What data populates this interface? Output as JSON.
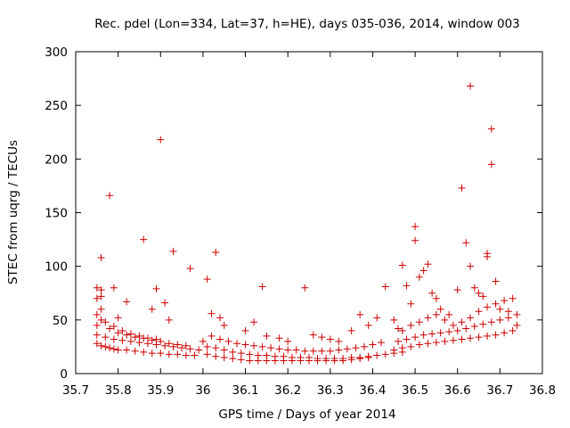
{
  "chart_data": {
    "type": "scatter",
    "title": "Rec. pdel (Lon=334, Lat=37, h=HE), days 035-036, 2014, window 003",
    "xlabel": "GPS time / Days of year 2014",
    "ylabel": "STEC from uqrg / TECUs",
    "xlim": [
      35.7,
      36.8
    ],
    "ylim": [
      0,
      300
    ],
    "xticks": [
      "35.7",
      "35.8",
      "35.9",
      "36",
      "36.1",
      "36.2",
      "36.3",
      "36.4",
      "36.5",
      "36.6",
      "36.7",
      "36.8"
    ],
    "yticks": [
      "0",
      "50",
      "100",
      "150",
      "200",
      "250",
      "300"
    ],
    "grid": false,
    "marker": "+",
    "marker_color": "#cc0000",
    "series": [
      {
        "name": "STEC",
        "points": [
          [
            35.75,
            28
          ],
          [
            35.76,
            26
          ],
          [
            35.77,
            25
          ],
          [
            35.78,
            24
          ],
          [
            35.79,
            23
          ],
          [
            35.8,
            22
          ],
          [
            35.82,
            22
          ],
          [
            35.84,
            21
          ],
          [
            35.86,
            20
          ],
          [
            35.88,
            19
          ],
          [
            35.9,
            19
          ],
          [
            35.92,
            18
          ],
          [
            35.94,
            18
          ],
          [
            35.96,
            17
          ],
          [
            35.98,
            17
          ],
          [
            35.75,
            36
          ],
          [
            35.77,
            34
          ],
          [
            35.79,
            32
          ],
          [
            35.81,
            31
          ],
          [
            35.83,
            30
          ],
          [
            35.85,
            29
          ],
          [
            35.87,
            28
          ],
          [
            35.89,
            27
          ],
          [
            35.91,
            26
          ],
          [
            35.93,
            25
          ],
          [
            35.95,
            24
          ],
          [
            35.97,
            23
          ],
          [
            35.99,
            22
          ],
          [
            35.75,
            45
          ],
          [
            35.76,
            50
          ],
          [
            35.78,
            42
          ],
          [
            35.8,
            38
          ],
          [
            35.82,
            36
          ],
          [
            35.84,
            34
          ],
          [
            35.86,
            33
          ],
          [
            35.88,
            31
          ],
          [
            35.9,
            30
          ],
          [
            35.92,
            28
          ],
          [
            35.94,
            27
          ],
          [
            35.96,
            26
          ],
          [
            35.75,
            55
          ],
          [
            35.76,
            60
          ],
          [
            35.77,
            48
          ],
          [
            35.79,
            44
          ],
          [
            35.81,
            40
          ],
          [
            35.83,
            37
          ],
          [
            35.85,
            35
          ],
          [
            35.87,
            33
          ],
          [
            35.89,
            32
          ],
          [
            35.75,
            70
          ],
          [
            35.76,
            72
          ],
          [
            35.75,
            80
          ],
          [
            35.76,
            78
          ],
          [
            35.76,
            108
          ],
          [
            35.78,
            166
          ],
          [
            35.79,
            80
          ],
          [
            35.8,
            52
          ],
          [
            35.82,
            67
          ],
          [
            35.86,
            125
          ],
          [
            35.88,
            60
          ],
          [
            35.89,
            79
          ],
          [
            35.9,
            218
          ],
          [
            35.91,
            66
          ],
          [
            35.92,
            50
          ],
          [
            35.93,
            114
          ],
          [
            35.97,
            98
          ],
          [
            36.01,
            88
          ],
          [
            36.02,
            56
          ],
          [
            36.03,
            113
          ],
          [
            36.04,
            52
          ],
          [
            36.0,
            30
          ],
          [
            36.01,
            25
          ],
          [
            36.03,
            24
          ],
          [
            36.05,
            22
          ],
          [
            36.07,
            20
          ],
          [
            36.09,
            19
          ],
          [
            36.11,
            18
          ],
          [
            36.13,
            17
          ],
          [
            36.15,
            17
          ],
          [
            36.17,
            16
          ],
          [
            36.19,
            16
          ],
          [
            36.21,
            15
          ],
          [
            36.23,
            15
          ],
          [
            36.25,
            15
          ],
          [
            36.27,
            14
          ],
          [
            36.29,
            14
          ],
          [
            36.31,
            14
          ],
          [
            36.33,
            14
          ],
          [
            36.35,
            15
          ],
          [
            36.37,
            15
          ],
          [
            36.39,
            16
          ],
          [
            36.41,
            17
          ],
          [
            36.43,
            18
          ],
          [
            36.45,
            19
          ],
          [
            36.47,
            20
          ],
          [
            36.01,
            18
          ],
          [
            36.03,
            16
          ],
          [
            36.05,
            15
          ],
          [
            36.07,
            14
          ],
          [
            36.09,
            13
          ],
          [
            36.11,
            12
          ],
          [
            36.13,
            12
          ],
          [
            36.15,
            12
          ],
          [
            36.17,
            12
          ],
          [
            36.19,
            12
          ],
          [
            36.21,
            12
          ],
          [
            36.23,
            12
          ],
          [
            36.25,
            12
          ],
          [
            36.27,
            12
          ],
          [
            36.29,
            12
          ],
          [
            36.31,
            12
          ],
          [
            36.33,
            12
          ],
          [
            36.35,
            13
          ],
          [
            36.37,
            14
          ],
          [
            36.39,
            15
          ],
          [
            36.02,
            35
          ],
          [
            36.04,
            32
          ],
          [
            36.06,
            30
          ],
          [
            36.08,
            28
          ],
          [
            36.1,
            27
          ],
          [
            36.12,
            26
          ],
          [
            36.14,
            25
          ],
          [
            36.16,
            24
          ],
          [
            36.18,
            23
          ],
          [
            36.2,
            22
          ],
          [
            36.22,
            22
          ],
          [
            36.24,
            21
          ],
          [
            36.26,
            21
          ],
          [
            36.28,
            21
          ],
          [
            36.3,
            21
          ],
          [
            36.32,
            22
          ],
          [
            36.34,
            23
          ],
          [
            36.36,
            24
          ],
          [
            36.38,
            25
          ],
          [
            36.4,
            27
          ],
          [
            36.42,
            29
          ],
          [
            36.05,
            45
          ],
          [
            36.1,
            40
          ],
          [
            36.12,
            48
          ],
          [
            36.14,
            81
          ],
          [
            36.15,
            35
          ],
          [
            36.18,
            33
          ],
          [
            36.2,
            30
          ],
          [
            36.24,
            80
          ],
          [
            36.26,
            36
          ],
          [
            36.28,
            34
          ],
          [
            36.3,
            32
          ],
          [
            36.32,
            30
          ],
          [
            36.35,
            40
          ],
          [
            36.37,
            55
          ],
          [
            36.39,
            45
          ],
          [
            36.41,
            52
          ],
          [
            36.43,
            81
          ],
          [
            36.45,
            50
          ],
          [
            36.46,
            42
          ],
          [
            36.45,
            22
          ],
          [
            36.47,
            24
          ],
          [
            36.49,
            25
          ],
          [
            36.51,
            27
          ],
          [
            36.53,
            28
          ],
          [
            36.55,
            29
          ],
          [
            36.57,
            30
          ],
          [
            36.59,
            31
          ],
          [
            36.61,
            32
          ],
          [
            36.63,
            33
          ],
          [
            36.65,
            34
          ],
          [
            36.67,
            35
          ],
          [
            36.69,
            36
          ],
          [
            36.71,
            38
          ],
          [
            36.73,
            40
          ],
          [
            36.46,
            30
          ],
          [
            36.48,
            32
          ],
          [
            36.5,
            34
          ],
          [
            36.52,
            36
          ],
          [
            36.54,
            37
          ],
          [
            36.56,
            38
          ],
          [
            36.58,
            39
          ],
          [
            36.6,
            40
          ],
          [
            36.62,
            42
          ],
          [
            36.64,
            44
          ],
          [
            36.66,
            46
          ],
          [
            36.68,
            48
          ],
          [
            36.7,
            50
          ],
          [
            36.72,
            52
          ],
          [
            36.74,
            55
          ],
          [
            36.47,
            40
          ],
          [
            36.49,
            45
          ],
          [
            36.51,
            48
          ],
          [
            36.53,
            52
          ],
          [
            36.55,
            55
          ],
          [
            36.57,
            50
          ],
          [
            36.59,
            45
          ],
          [
            36.61,
            48
          ],
          [
            36.63,
            52
          ],
          [
            36.65,
            58
          ],
          [
            36.67,
            62
          ],
          [
            36.69,
            65
          ],
          [
            36.71,
            68
          ],
          [
            36.73,
            70
          ],
          [
            36.47,
            101
          ],
          [
            36.48,
            82
          ],
          [
            36.49,
            65
          ],
          [
            36.5,
            124
          ],
          [
            36.5,
            137
          ],
          [
            36.51,
            90
          ],
          [
            36.52,
            96
          ],
          [
            36.53,
            102
          ],
          [
            36.54,
            75
          ],
          [
            36.55,
            70
          ],
          [
            36.56,
            60
          ],
          [
            36.58,
            55
          ],
          [
            36.6,
            78
          ],
          [
            36.61,
            173
          ],
          [
            36.62,
            122
          ],
          [
            36.63,
            100
          ],
          [
            36.63,
            268
          ],
          [
            36.64,
            80
          ],
          [
            36.65,
            75
          ],
          [
            36.66,
            72
          ],
          [
            36.67,
            112
          ],
          [
            36.67,
            109
          ],
          [
            36.68,
            228
          ],
          [
            36.68,
            195
          ],
          [
            36.69,
            86
          ],
          [
            36.7,
            60
          ],
          [
            36.72,
            58
          ],
          [
            36.74,
            45
          ]
        ]
      }
    ]
  }
}
